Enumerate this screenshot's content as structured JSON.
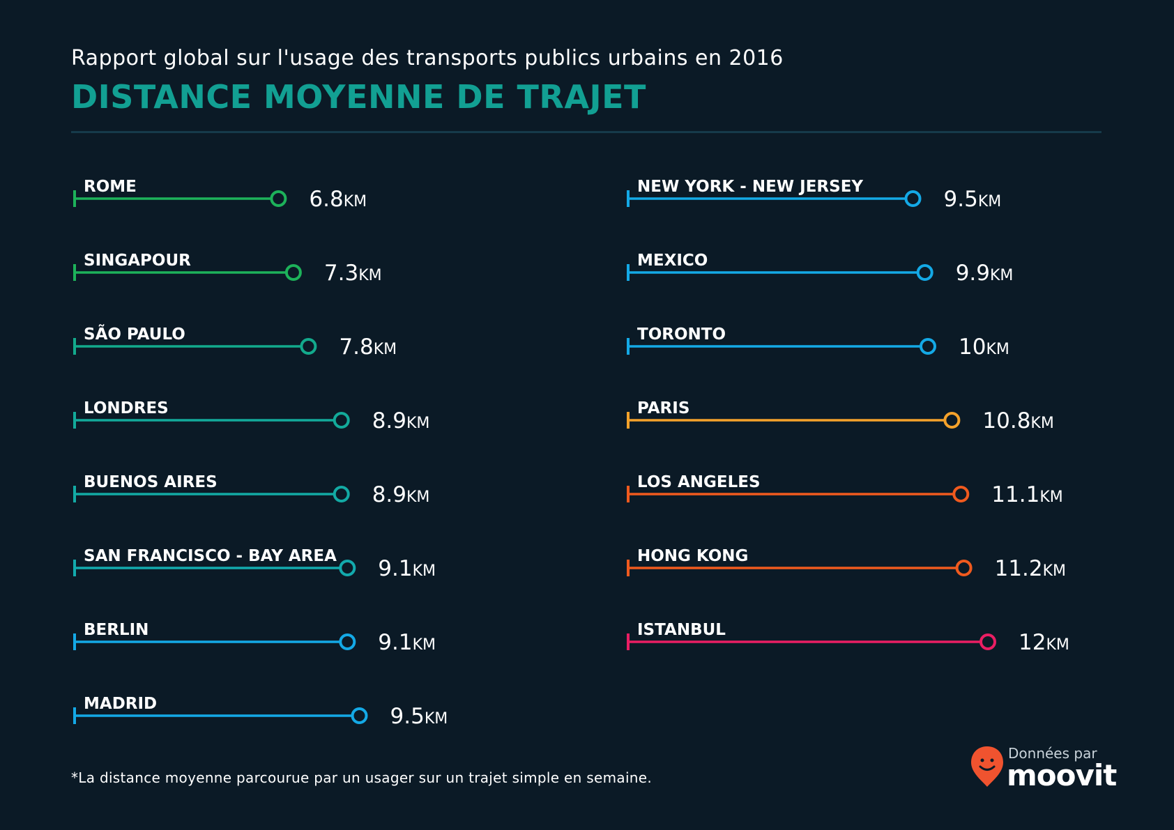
{
  "header": {
    "subtitle": "Rapport global sur l'usage des transports publics urbains en 2016",
    "title": "DISTANCE MOYENNE DE TRAJET"
  },
  "footnote": "*La distance moyenne parcourue par un usager sur un trajet simple en semaine.",
  "brand": {
    "prefix": "Données par",
    "name": "moovit",
    "pin_color": "#f0532f"
  },
  "chart_data": {
    "type": "bar",
    "unit": "KM",
    "columns": [
      {
        "rows": [
          {
            "label": "ROME",
            "value": 6.8,
            "display": "6.8",
            "color": "#1db25a"
          },
          {
            "label": "SINGAPOUR",
            "value": 7.3,
            "display": "7.3",
            "color": "#1db25a"
          },
          {
            "label": "SÃO PAULO",
            "value": 7.8,
            "display": "7.8",
            "color": "#13aa8c"
          },
          {
            "label": "LONDRES",
            "value": 8.9,
            "display": "8.9",
            "color": "#13aa9a"
          },
          {
            "label": "BUENOS AIRES",
            "value": 8.9,
            "display": "8.9",
            "color": "#13aaa4"
          },
          {
            "label": "SAN FRANCISCO - BAY AREA",
            "value": 9.1,
            "display": "9.1",
            "color": "#13aaad"
          },
          {
            "label": "BERLIN",
            "value": 9.1,
            "display": "9.1",
            "color": "#14a9e6"
          },
          {
            "label": "MADRID",
            "value": 9.5,
            "display": "9.5",
            "color": "#14a9e6"
          }
        ]
      },
      {
        "rows": [
          {
            "label": "NEW YORK - NEW JERSEY",
            "value": 9.5,
            "display": "9.5",
            "color": "#14a9e6"
          },
          {
            "label": "MEXICO",
            "value": 9.9,
            "display": "9.9",
            "color": "#14a9e6"
          },
          {
            "label": "TORONTO",
            "value": 10,
            "display": "10",
            "color": "#14a9e6"
          },
          {
            "label": "PARIS",
            "value": 10.8,
            "display": "10.8",
            "color": "#f5a22b"
          },
          {
            "label": "LOS ANGELES",
            "value": 11.1,
            "display": "11.1",
            "color": "#f05a1e"
          },
          {
            "label": "HONG KONG",
            "value": 11.2,
            "display": "11.2",
            "color": "#f05a1e"
          },
          {
            "label": "ISTANBUL",
            "value": 12,
            "display": "12",
            "color": "#ea1e63"
          }
        ]
      }
    ]
  }
}
